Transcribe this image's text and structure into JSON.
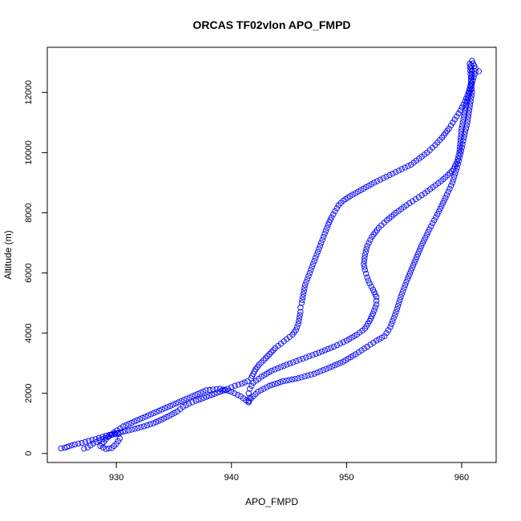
{
  "chart_data": {
    "type": "scatter",
    "title": "ORCAS TF02vlon APO_FMPD",
    "xlabel": "APO_FMPD",
    "ylabel": "Altitude (m)",
    "xlim": [
      924,
      963
    ],
    "ylim": [
      -300,
      13500
    ],
    "x_ticks": [
      930,
      940,
      950,
      960
    ],
    "y_ticks": [
      0,
      2000,
      4000,
      6000,
      8000,
      10000,
      12000
    ],
    "grid": false,
    "legend": "none",
    "marker": "open-circle",
    "color": "#0000ff",
    "series": [
      {
        "points": [
          [
            925.2,
            170
          ],
          [
            925.5,
            190
          ],
          [
            925.9,
            240
          ],
          [
            926.4,
            300
          ],
          [
            927.0,
            350
          ],
          [
            927.6,
            420
          ],
          [
            928.2,
            480
          ],
          [
            928.8,
            560
          ],
          [
            929.4,
            620
          ],
          [
            930.1,
            680
          ],
          [
            930.8,
            740
          ],
          [
            931.6,
            820
          ],
          [
            932.4,
            900
          ],
          [
            933.2,
            1000
          ],
          [
            933.9,
            1120
          ],
          [
            934.6,
            1250
          ],
          [
            935.3,
            1400
          ],
          [
            935.8,
            1550
          ],
          [
            936.3,
            1650
          ],
          [
            936.9,
            1750
          ],
          [
            937.6,
            1850
          ],
          [
            938.3,
            1950
          ],
          [
            939.0,
            2050
          ],
          [
            939.7,
            2150
          ],
          [
            940.3,
            2250
          ],
          [
            940.9,
            2320
          ],
          [
            941.4,
            2400
          ],
          [
            941.7,
            2500
          ],
          [
            941.9,
            2650
          ],
          [
            942.1,
            2800
          ],
          [
            942.4,
            2950
          ],
          [
            942.8,
            3100
          ],
          [
            943.3,
            3300
          ],
          [
            943.8,
            3500
          ],
          [
            944.3,
            3650
          ],
          [
            944.8,
            3800
          ],
          [
            945.3,
            3950
          ],
          [
            945.6,
            4100
          ],
          [
            945.8,
            4300
          ],
          [
            945.9,
            4500
          ],
          [
            946.0,
            4700
          ],
          [
            946.0,
            4850
          ],
          [
            946.1,
            5000
          ],
          [
            946.2,
            5200
          ],
          [
            946.3,
            5400
          ],
          [
            946.4,
            5600
          ],
          [
            946.6,
            5800
          ],
          [
            946.8,
            6000
          ],
          [
            947.0,
            6200
          ],
          [
            947.2,
            6400
          ],
          [
            947.5,
            6700
          ],
          [
            947.8,
            7000
          ],
          [
            948.1,
            7300
          ],
          [
            948.4,
            7600
          ],
          [
            948.7,
            7850
          ],
          [
            949.0,
            8050
          ],
          [
            949.3,
            8250
          ],
          [
            949.7,
            8400
          ],
          [
            950.3,
            8550
          ],
          [
            951.0,
            8700
          ],
          [
            951.7,
            8850
          ],
          [
            952.4,
            9000
          ],
          [
            953.2,
            9150
          ],
          [
            954.0,
            9300
          ],
          [
            954.8,
            9450
          ],
          [
            955.6,
            9600
          ],
          [
            956.3,
            9800
          ],
          [
            957.0,
            10000
          ],
          [
            957.7,
            10250
          ],
          [
            958.3,
            10500
          ],
          [
            958.9,
            10800
          ],
          [
            959.4,
            11100
          ],
          [
            959.9,
            11400
          ],
          [
            960.3,
            11700
          ],
          [
            960.6,
            12000
          ],
          [
            960.8,
            12300
          ],
          [
            960.9,
            12600
          ],
          [
            960.8,
            12900
          ],
          [
            960.9,
            13050
          ],
          [
            961.2,
            12800
          ],
          [
            961.5,
            12700
          ]
        ]
      },
      {
        "points": [
          [
            961.2,
            12700
          ],
          [
            960.9,
            12300
          ],
          [
            960.7,
            12000
          ],
          [
            960.4,
            11600
          ],
          [
            960.2,
            11200
          ],
          [
            960.0,
            10800
          ],
          [
            959.9,
            10400
          ],
          [
            959.8,
            10000
          ],
          [
            959.6,
            9700
          ],
          [
            959.3,
            9450
          ],
          [
            958.8,
            9250
          ],
          [
            958.2,
            9050
          ],
          [
            957.5,
            8850
          ],
          [
            956.8,
            8650
          ],
          [
            956.0,
            8450
          ],
          [
            955.2,
            8250
          ],
          [
            954.3,
            8000
          ],
          [
            953.5,
            7750
          ],
          [
            952.8,
            7500
          ],
          [
            952.2,
            7200
          ],
          [
            951.8,
            6900
          ],
          [
            951.6,
            6600
          ],
          [
            951.5,
            6300
          ],
          [
            951.6,
            6100
          ],
          [
            951.8,
            5850
          ],
          [
            952.0,
            5650
          ],
          [
            952.3,
            5450
          ],
          [
            952.6,
            5200
          ],
          [
            952.6,
            4950
          ],
          [
            952.3,
            4650
          ],
          [
            952.0,
            4400
          ],
          [
            951.6,
            4150
          ],
          [
            950.9,
            3950
          ],
          [
            950.0,
            3750
          ],
          [
            948.9,
            3550
          ],
          [
            947.6,
            3350
          ],
          [
            946.2,
            3150
          ],
          [
            944.8,
            2950
          ],
          [
            943.5,
            2750
          ],
          [
            942.6,
            2550
          ],
          [
            941.9,
            2350
          ],
          [
            941.6,
            2150
          ],
          [
            941.5,
            2000
          ],
          [
            941.6,
            1850
          ],
          [
            941.5,
            1750
          ],
          [
            941.5,
            1700
          ]
        ]
      },
      {
        "points": [
          [
            941.5,
            1750
          ],
          [
            942.3,
            2050
          ],
          [
            943.3,
            2250
          ],
          [
            944.5,
            2400
          ],
          [
            945.8,
            2500
          ],
          [
            947.2,
            2650
          ],
          [
            948.5,
            2850
          ],
          [
            949.7,
            3050
          ],
          [
            950.8,
            3300
          ],
          [
            951.8,
            3550
          ],
          [
            952.6,
            3750
          ],
          [
            953.3,
            3900
          ],
          [
            953.8,
            4200
          ],
          [
            954.3,
            4700
          ],
          [
            954.8,
            5300
          ],
          [
            955.3,
            5800
          ],
          [
            955.9,
            6350
          ],
          [
            956.5,
            6900
          ],
          [
            957.2,
            7450
          ],
          [
            957.9,
            7950
          ],
          [
            958.6,
            8500
          ],
          [
            959.2,
            9000
          ],
          [
            959.6,
            9500
          ],
          [
            959.9,
            9950
          ],
          [
            960.2,
            10500
          ],
          [
            960.5,
            11000
          ],
          [
            960.7,
            11500
          ],
          [
            960.9,
            12000
          ],
          [
            960.8,
            12500
          ],
          [
            960.7,
            12950
          ]
        ]
      },
      {
        "points": [
          [
            941.5,
            1700
          ],
          [
            940.8,
            1900
          ],
          [
            940.0,
            2050
          ],
          [
            939.0,
            2150
          ],
          [
            937.8,
            2100
          ],
          [
            936.6,
            1900
          ],
          [
            935.4,
            1700
          ],
          [
            934.2,
            1500
          ],
          [
            933.0,
            1300
          ],
          [
            931.8,
            1100
          ],
          [
            930.6,
            900
          ],
          [
            929.8,
            700
          ],
          [
            929.3,
            550
          ],
          [
            928.9,
            380
          ],
          [
            928.6,
            250
          ],
          [
            929.1,
            150
          ],
          [
            929.6,
            180
          ],
          [
            930.0,
            320
          ],
          [
            930.3,
            500
          ],
          [
            930.2,
            650
          ],
          [
            929.6,
            620
          ],
          [
            928.8,
            480
          ],
          [
            928.0,
            330
          ],
          [
            927.5,
            200
          ],
          [
            927.2,
            160
          ]
        ]
      }
    ]
  }
}
